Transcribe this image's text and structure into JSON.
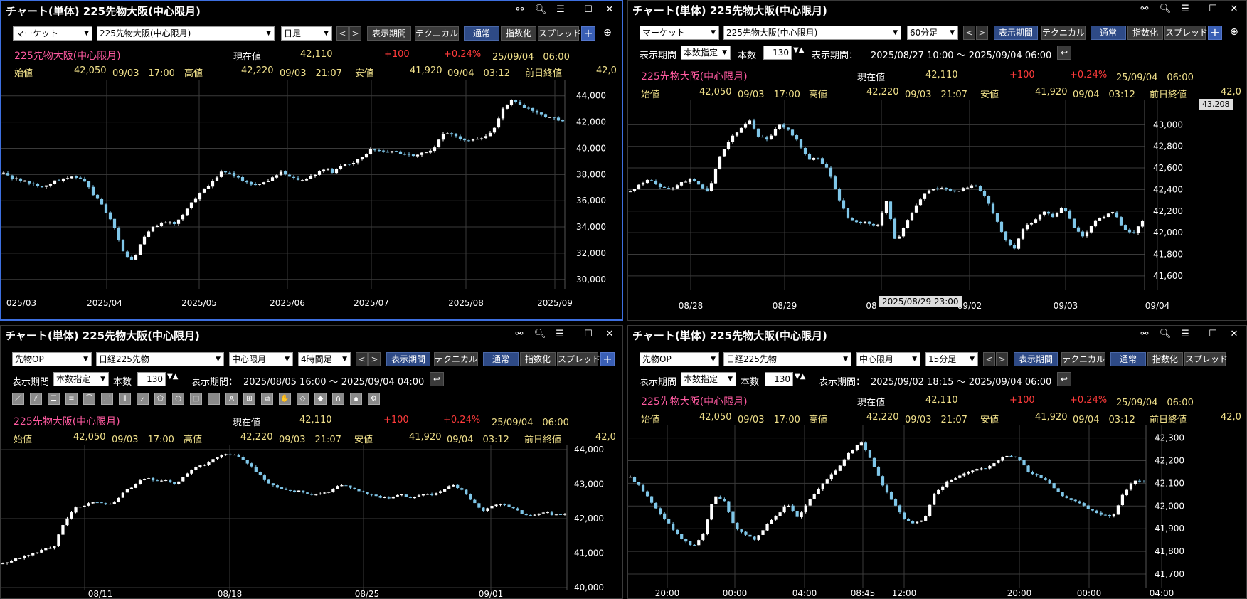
{
  "common": {
    "window_title": "チャート(単体) 225先物大阪(中心限月)",
    "instrument_name": "225先物大阪(中心限月)",
    "label_now": "現在値",
    "now": "42,110",
    "change": "+100",
    "change_pct": "+0.24%",
    "timestamp": "25/09/04　06:00",
    "label_open": "始値",
    "open": "42,050",
    "open_time": "09/03　17:00",
    "label_high": "高値",
    "high": "42,220",
    "high_time": "09/03　21:07",
    "label_low": "安値",
    "low": "41,920",
    "low_time": "09/04　03:12",
    "label_prev": "前日終値",
    "prev": "42,0",
    "btn_period": "表示期間",
    "btn_technical": "テクニカル",
    "btn_normal": "通常",
    "btn_index": "指数化",
    "btn_spread": "スプレッド",
    "label_period": "表示期間",
    "label_count": "本数",
    "nav_prev": "<",
    "nav_next": ">",
    "plus": "+",
    "icon_link": "link-icon",
    "icon_search": "search-icon",
    "icon_menu": "menu-icon",
    "icon_max": "maximize-icon",
    "icon_close": "close-icon"
  },
  "panels": [
    {
      "market": "マーケット",
      "symbol": "225先物大阪(中心限月)",
      "timeframe": "日足",
      "chart_data": {
        "type": "candlestick",
        "y_ticks": [
          "44,000",
          "42,000",
          "40,000",
          "38,000",
          "36,000",
          "34,000",
          "32,000",
          "30,000"
        ],
        "ylim": [
          29500,
          44800
        ],
        "x_labels": [
          "025/03",
          "2025/04",
          "2025/05",
          "2025/06",
          "2025/07",
          "2025/08",
          "2025/09"
        ],
        "close_path": [
          38100,
          37700,
          37500,
          37200,
          37000,
          37500,
          37700,
          37800,
          37600,
          36500,
          35500,
          34200,
          32000,
          31500,
          33200,
          34000,
          34500,
          34200,
          35000,
          36000,
          36800,
          37500,
          38300,
          38000,
          37600,
          37200,
          37400,
          37800,
          38200,
          37700,
          37600,
          37900,
          38400,
          38200,
          38700,
          38800,
          39400,
          40000,
          39800,
          39700,
          39600,
          39500,
          39700,
          39800,
          41200,
          41000,
          40700,
          40600,
          40800,
          41200,
          43000,
          43700,
          43200,
          42800,
          42500,
          42300,
          42100
        ]
      }
    },
    {
      "market": "マーケット",
      "symbol": "225先物大阪(中心限月)",
      "timeframe": "60分足",
      "period_mode": "本数指定",
      "count": "130",
      "range_label": "表示期間：",
      "range": "2025/08/27 10:00 ～ 2025/09/04 06:00",
      "cursor_label": "2025/08/29 23:00",
      "top_price_label": "43,208",
      "chart_data": {
        "type": "candlestick",
        "y_ticks": [
          "43,000",
          "42,800",
          "42,600",
          "42,400",
          "42,200",
          "42,000",
          "41,800",
          "41,600"
        ],
        "ylim": [
          41500,
          43200
        ],
        "x_labels": [
          "08/28",
          "08/29",
          "08",
          "09/02",
          "09/03",
          "09/04"
        ],
        "close_path": [
          42380,
          42450,
          42500,
          42420,
          42400,
          42450,
          42500,
          42440,
          42380,
          42700,
          42850,
          42950,
          43050,
          42900,
          42850,
          43000,
          42950,
          42850,
          42680,
          42700,
          42600,
          42350,
          42150,
          42100,
          42100,
          42050,
          42300,
          41900,
          42100,
          42250,
          42380,
          42420,
          42400,
          42380,
          42420,
          42450,
          42350,
          42150,
          41950,
          41850,
          42050,
          42100,
          42200,
          42150,
          42250,
          42050,
          41950,
          42100,
          42150,
          42200,
          42050,
          41980,
          42110
        ]
      }
    },
    {
      "market": "先物OP",
      "symbol": "日経225先物",
      "contract": "中心限月",
      "timeframe": "4時間足",
      "period_mode": "本数指定",
      "count": "130",
      "range_label": "表示期間：",
      "range": "2025/08/05 16:00 ～ 2025/09/04 04:00",
      "tools": [
        "trendline-icon",
        "parallel-icon",
        "hline-icon",
        "channel-icon",
        "arc-icon",
        "fan-icon",
        "grid-icon",
        "pitchfork-icon",
        "pentagon-icon",
        "circle-icon",
        "rectangle-icon",
        "line-icon",
        "text-icon",
        "calc-icon",
        "copy-icon",
        "hand-icon",
        "eraser-icon",
        "eraser2-icon",
        "magnet-icon",
        "lock-icon",
        "gear-icon"
      ],
      "chart_data": {
        "type": "candlestick",
        "y_ticks": [
          "44,000",
          "43,000",
          "42,000",
          "41,000",
          "40,000"
        ],
        "ylim": [
          40000,
          44000
        ],
        "x_labels": [
          "08/11",
          "08/18",
          "08/25",
          "09/01"
        ],
        "close_path": [
          40700,
          40800,
          40900,
          41000,
          41100,
          41200,
          41900,
          42300,
          42400,
          42500,
          42400,
          42500,
          42800,
          43000,
          43200,
          43100,
          43100,
          43000,
          43300,
          43500,
          43600,
          43800,
          43900,
          43800,
          43600,
          43300,
          43000,
          42900,
          42800,
          42800,
          42700,
          42700,
          42800,
          43000,
          42900,
          42800,
          42700,
          42600,
          42600,
          42700,
          42600,
          42700,
          42700,
          42800,
          43000,
          42800,
          42500,
          42200,
          42400,
          42400,
          42300,
          42100,
          42100,
          42200,
          42100,
          42110
        ]
      }
    },
    {
      "market": "先物OP",
      "symbol": "日経225先物",
      "contract": "中心限月",
      "timeframe": "15分足",
      "period_mode": "本数指定",
      "count": "130",
      "range_label": "表示期間：",
      "range": "2025/09/02 18:15 ～ 2025/09/04 06:00",
      "chart_data": {
        "type": "candlestick",
        "y_ticks": [
          "42,300",
          "42,200",
          "42,100",
          "42,000",
          "41,900",
          "41,800",
          "41,700"
        ],
        "ylim": [
          41650,
          42330
        ],
        "x_labels": [
          "20:00",
          "00:00",
          "04:00",
          "08:45",
          "12:00",
          "20:00",
          "00:00",
          "04:00"
        ],
        "close_path": [
          42130,
          42080,
          42020,
          41960,
          41900,
          41850,
          41820,
          41880,
          42050,
          42020,
          41900,
          41870,
          41850,
          41920,
          41960,
          42010,
          41950,
          42020,
          42080,
          42130,
          42180,
          42240,
          42280,
          42200,
          42100,
          42020,
          41950,
          41920,
          41940,
          42050,
          42100,
          42120,
          42150,
          42160,
          42170,
          42200,
          42220,
          42210,
          42150,
          42130,
          42100,
          42050,
          42030,
          42010,
          41980,
          41960,
          41950,
          42050,
          42110,
          42110
        ]
      }
    }
  ]
}
